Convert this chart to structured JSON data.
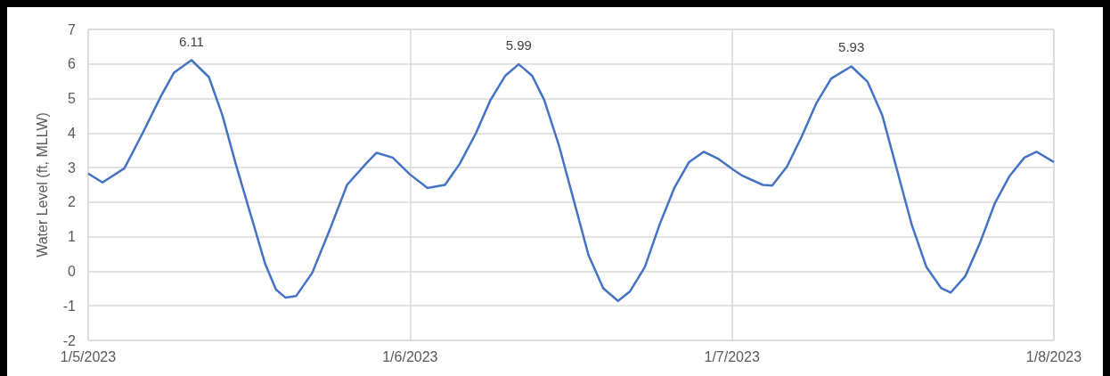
{
  "chart_data": {
    "type": "line",
    "ylabel": "Water Level (ft, MLLW)",
    "x": [
      "2023-01-05T00:00",
      "2023-01-05T01:04",
      "2023-01-05T02:42",
      "2023-01-05T04:03",
      "2023-01-05T05:24",
      "2023-01-05T06:24",
      "2023-01-05T07:42",
      "2023-01-05T09:00",
      "2023-01-05T10:00",
      "2023-01-05T11:00",
      "2023-01-05T12:00",
      "2023-01-05T13:12",
      "2023-01-05T14:00",
      "2023-01-05T14:42",
      "2023-01-05T15:30",
      "2023-01-05T16:42",
      "2023-01-05T18:00",
      "2023-01-05T19:18",
      "2023-01-05T20:42",
      "2023-01-05T21:30",
      "2023-01-05T22:42",
      "2023-01-06T00:00",
      "2023-01-06T01:18",
      "2023-01-06T02:36",
      "2023-01-06T03:42",
      "2023-01-06T04:54",
      "2023-01-06T06:00",
      "2023-01-06T07:06",
      "2023-01-06T08:06",
      "2023-01-06T09:06",
      "2023-01-06T10:00",
      "2023-01-06T11:06",
      "2023-01-06T12:12",
      "2023-01-06T13:18",
      "2023-01-06T14:24",
      "2023-01-06T15:30",
      "2023-01-06T16:24",
      "2023-01-06T17:30",
      "2023-01-06T18:36",
      "2023-01-06T19:42",
      "2023-01-06T20:48",
      "2023-01-06T21:54",
      "2023-01-06T23:00",
      "2023-01-07T00:06",
      "2023-01-07T00:48",
      "2023-01-07T02:18",
      "2023-01-07T03:00",
      "2023-01-07T04:06",
      "2023-01-07T05:12",
      "2023-01-07T06:18",
      "2023-01-07T07:24",
      "2023-01-07T08:54",
      "2023-01-07T10:06",
      "2023-01-07T11:12",
      "2023-01-07T12:18",
      "2023-01-07T13:24",
      "2023-01-07T14:30",
      "2023-01-07T15:36",
      "2023-01-07T16:18",
      "2023-01-07T17:24",
      "2023-01-07T18:30",
      "2023-01-07T19:36",
      "2023-01-07T20:42",
      "2023-01-07T21:48",
      "2023-01-07T22:42",
      "2023-01-08T00:00"
    ],
    "series": [
      {
        "color": "#4472c4",
        "values": [
          2.83,
          2.57,
          2.98,
          3.99,
          5.05,
          5.75,
          6.11,
          5.62,
          4.52,
          3.11,
          1.79,
          0.21,
          -0.53,
          -0.76,
          -0.72,
          -0.05,
          1.19,
          2.5,
          3.11,
          3.43,
          3.29,
          2.8,
          2.41,
          2.5,
          3.11,
          3.99,
          4.96,
          5.66,
          5.99,
          5.66,
          4.96,
          3.64,
          2.06,
          0.47,
          -0.49,
          -0.86,
          -0.58,
          0.12,
          1.35,
          2.41,
          3.16,
          3.46,
          3.25,
          2.94,
          2.76,
          2.5,
          2.48,
          3.03,
          3.9,
          4.87,
          5.58,
          5.93,
          5.49,
          4.52,
          2.94,
          1.35,
          0.12,
          -0.49,
          -0.62,
          -0.14,
          0.83,
          1.97,
          2.76,
          3.29,
          3.46,
          3.16
        ]
      }
    ],
    "annotations": [
      {
        "text": "6.11",
        "x": "2023-01-05T07:42",
        "y": 6.11
      },
      {
        "text": "5.99",
        "x": "2023-01-06T08:06",
        "y": 5.99
      },
      {
        "text": "5.93",
        "x": "2023-01-07T08:54",
        "y": 5.93
      }
    ],
    "xlim": [
      "2023-01-05",
      "2023-01-08"
    ],
    "xticks": [
      {
        "value": "2023-01-05",
        "label": "1/5/2023"
      },
      {
        "value": "2023-01-06",
        "label": "1/6/2023"
      },
      {
        "value": "2023-01-07",
        "label": "1/7/2023"
      },
      {
        "value": "2023-01-08",
        "label": "1/8/2023"
      }
    ],
    "ylim": [
      -2,
      7
    ],
    "yticks": [
      -2,
      -1,
      0,
      1,
      2,
      3,
      4,
      5,
      6,
      7
    ],
    "grid": true,
    "marker": "none",
    "line_style": "solid"
  }
}
